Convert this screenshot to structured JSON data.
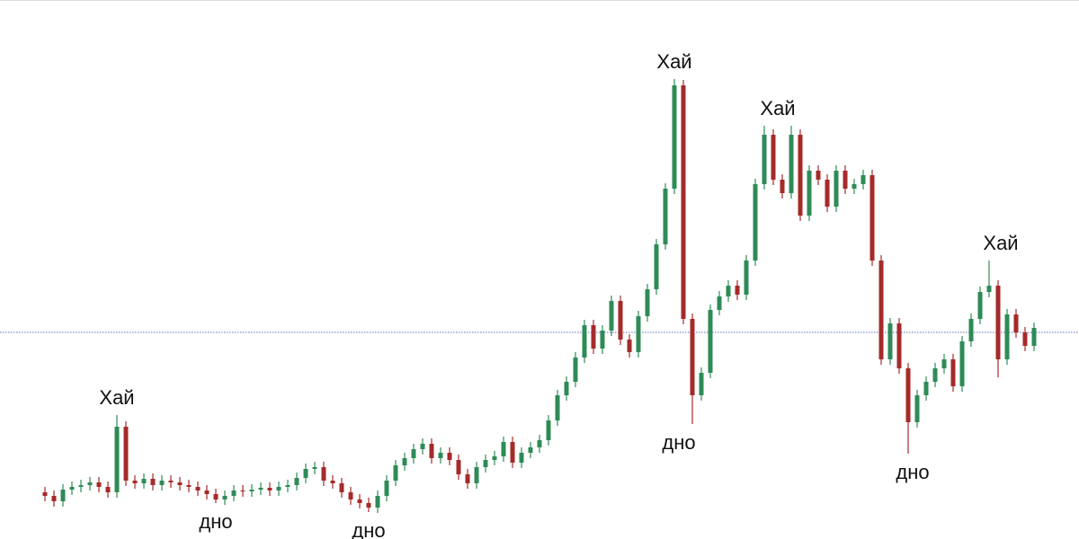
{
  "chart_data": {
    "type": "candlestick",
    "up_color": "#2e8b57",
    "down_color": "#a52a2a",
    "ylim": [
      0,
      600
    ],
    "open": [
      52,
      48,
      42,
      55,
      58,
      60,
      63,
      58,
      52,
      125,
      65,
      62,
      67,
      60,
      65,
      63,
      60,
      58,
      54,
      50,
      44,
      48,
      54,
      53,
      55,
      57,
      54,
      58,
      60,
      68,
      78,
      80,
      65,
      62,
      52,
      44,
      40,
      35,
      48,
      65,
      82,
      90,
      100,
      106,
      90,
      96,
      88,
      72,
      62,
      80,
      88,
      92,
      108,
      85,
      96,
      102,
      110,
      132,
      160,
      175,
      202,
      238,
      212,
      232,
      265,
      222,
      208,
      248,
      278,
      328,
      390,
      505,
      245,
      160,
      185,
      255,
      270,
      282,
      272,
      310,
      395,
      450,
      400,
      385,
      450,
      360,
      410,
      400,
      370,
      410,
      390,
      395,
      405,
      310,
      200,
      240,
      190,
      130,
      160,
      175,
      190,
      200,
      170,
      220,
      245,
      275,
      282,
      200,
      250,
      230,
      215
    ],
    "high": [
      58,
      54,
      61,
      64,
      66,
      69,
      69,
      64,
      138,
      131,
      71,
      73,
      73,
      71,
      71,
      69,
      66,
      64,
      60,
      56,
      54,
      60,
      60,
      61,
      63,
      63,
      64,
      66,
      74,
      84,
      86,
      86,
      71,
      68,
      58,
      50,
      46,
      54,
      71,
      88,
      96,
      106,
      112,
      112,
      102,
      102,
      94,
      78,
      86,
      94,
      98,
      114,
      114,
      102,
      108,
      116,
      138,
      166,
      181,
      208,
      244,
      244,
      238,
      271,
      271,
      228,
      254,
      284,
      334,
      396,
      512,
      511,
      251,
      191,
      261,
      276,
      288,
      288,
      316,
      401,
      460,
      456,
      406,
      460,
      456,
      416,
      416,
      406,
      416,
      416,
      401,
      411,
      411,
      316,
      246,
      246,
      196,
      166,
      181,
      196,
      206,
      206,
      226,
      251,
      281,
      310,
      288,
      256,
      256,
      236,
      241
    ],
    "low": [
      42,
      36,
      36,
      49,
      52,
      54,
      52,
      46,
      46,
      59,
      56,
      56,
      54,
      54,
      57,
      54,
      52,
      48,
      44,
      40,
      38,
      42,
      47,
      47,
      49,
      48,
      48,
      52,
      54,
      62,
      72,
      59,
      56,
      46,
      38,
      34,
      30,
      29,
      42,
      59,
      76,
      84,
      94,
      84,
      84,
      82,
      66,
      56,
      56,
      74,
      82,
      86,
      79,
      79,
      90,
      96,
      104,
      126,
      154,
      169,
      196,
      206,
      206,
      226,
      216,
      202,
      202,
      242,
      272,
      322,
      384,
      239,
      128,
      154,
      179,
      249,
      264,
      266,
      266,
      304,
      389,
      394,
      379,
      379,
      354,
      354,
      394,
      364,
      364,
      384,
      384,
      389,
      304,
      194,
      194,
      184,
      95,
      124,
      154,
      169,
      184,
      164,
      164,
      214,
      239,
      269,
      180,
      194,
      224,
      209,
      209
    ],
    "close": [
      48,
      42,
      55,
      58,
      60,
      63,
      58,
      52,
      125,
      65,
      62,
      67,
      60,
      65,
      63,
      60,
      58,
      54,
      50,
      44,
      48,
      54,
      53,
      55,
      57,
      54,
      58,
      60,
      68,
      78,
      80,
      65,
      62,
      52,
      44,
      40,
      35,
      48,
      65,
      82,
      90,
      100,
      106,
      90,
      96,
      88,
      72,
      62,
      80,
      88,
      92,
      108,
      85,
      96,
      102,
      110,
      132,
      160,
      175,
      202,
      238,
      212,
      232,
      265,
      222,
      208,
      248,
      278,
      328,
      390,
      505,
      245,
      160,
      185,
      255,
      270,
      282,
      272,
      310,
      395,
      450,
      400,
      385,
      450,
      360,
      410,
      400,
      370,
      410,
      390,
      395,
      405,
      310,
      200,
      240,
      190,
      130,
      160,
      175,
      190,
      200,
      170,
      220,
      245,
      275,
      282,
      200,
      250,
      230,
      215,
      235
    ],
    "hlines": [
      {
        "value": 230,
        "color": "#5b6bbf"
      }
    ],
    "annotations": [
      {
        "text": "Хай",
        "x": 8,
        "y": 138,
        "position": "above"
      },
      {
        "text": "дно",
        "x": 19,
        "y": 40,
        "position": "below"
      },
      {
        "text": "дно",
        "x": 36,
        "y": 30,
        "position": "below"
      },
      {
        "text": "Хай",
        "x": 70,
        "y": 512,
        "position": "above"
      },
      {
        "text": "дно",
        "x": 70.5,
        "y": 128,
        "position": "below"
      },
      {
        "text": "Хай",
        "x": 81.5,
        "y": 460,
        "position": "above"
      },
      {
        "text": "дно",
        "x": 96.5,
        "y": 95,
        "position": "below"
      },
      {
        "text": "Хай",
        "x": 106.3,
        "y": 310,
        "position": "above"
      }
    ]
  }
}
